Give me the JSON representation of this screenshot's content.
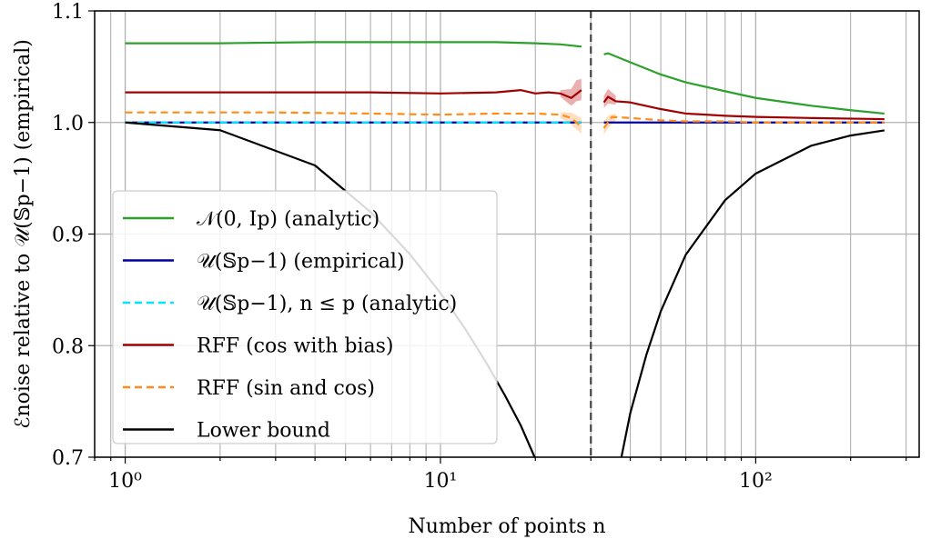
{
  "chart_data": {
    "type": "line",
    "xscale": "log",
    "xlim": [
      0.8,
      330
    ],
    "ylim": [
      0.7,
      1.1
    ],
    "grid": true,
    "xlabel": "Number of points n",
    "ylabel": "ℰnoise relative to 𝒰(𝕊p−1) (empirical)",
    "x_ticks": [
      {
        "value": 1,
        "label": "10⁰"
      },
      {
        "value": 10,
        "label": "10¹"
      },
      {
        "value": 100,
        "label": "10²"
      }
    ],
    "y_ticks": [
      {
        "value": 0.7,
        "label": "0.7"
      },
      {
        "value": 0.8,
        "label": "0.8"
      },
      {
        "value": 0.9,
        "label": "0.9"
      },
      {
        "value": 1.0,
        "label": "1.0"
      },
      {
        "value": 1.1,
        "label": "1.1"
      }
    ],
    "vline": {
      "x": 30,
      "style": "dashed",
      "color": "#444444"
    },
    "legend_position": "lower-left",
    "series": [
      {
        "name": "𝒩(0, Ip) (analytic)",
        "color": "#2ca02c",
        "style": "solid",
        "segments": [
          [
            [
              1,
              1.071
            ],
            [
              2,
              1.071
            ],
            [
              4,
              1.072
            ],
            [
              8,
              1.072
            ],
            [
              15,
              1.072
            ],
            [
              20,
              1.071
            ],
            [
              24,
              1.07
            ],
            [
              26,
              1.069
            ],
            [
              28,
              1.068
            ]
          ],
          [
            [
              33,
              1.061
            ],
            [
              34,
              1.062
            ],
            [
              40,
              1.054
            ],
            [
              50,
              1.043
            ],
            [
              60,
              1.036
            ],
            [
              80,
              1.028
            ],
            [
              100,
              1.022
            ],
            [
              150,
              1.015
            ],
            [
              200,
              1.011
            ],
            [
              256,
              1.008
            ]
          ]
        ]
      },
      {
        "name": "𝒰(𝕊p−1) (empirical)",
        "color": "#0000a0",
        "style": "solid",
        "segments": [
          [
            [
              1,
              1.0
            ],
            [
              28,
              1.0
            ]
          ],
          [
            [
              33,
              1.0
            ],
            [
              256,
              1.0
            ]
          ]
        ]
      },
      {
        "name": "𝒰(𝕊p−1), n ≤ p (analytic)",
        "color": "#00e5ff",
        "style": "dashed",
        "segments": [
          [
            [
              1,
              1.0
            ],
            [
              28,
              1.0
            ]
          ]
        ]
      },
      {
        "name": "RFF (cos with bias)",
        "color": "#a00000",
        "style": "solid",
        "segments": [
          [
            [
              1,
              1.027
            ],
            [
              3,
              1.027
            ],
            [
              6,
              1.027
            ],
            [
              10,
              1.026
            ],
            [
              15,
              1.027
            ],
            [
              18,
              1.029
            ],
            [
              20,
              1.026
            ],
            [
              22,
              1.027
            ],
            [
              24,
              1.026
            ],
            [
              26,
              1.022
            ],
            [
              28,
              1.029
            ]
          ],
          [
            [
              33,
              1.018
            ],
            [
              34,
              1.023
            ],
            [
              36,
              1.019
            ],
            [
              40,
              1.018
            ],
            [
              50,
              1.012
            ],
            [
              60,
              1.008
            ],
            [
              80,
              1.006
            ],
            [
              100,
              1.005
            ],
            [
              150,
              1.004
            ],
            [
              256,
              1.003
            ]
          ]
        ]
      },
      {
        "name": "RFF (sin and cos)",
        "color": "#ff8c1a",
        "style": "dashed",
        "segments": [
          [
            [
              1,
              1.009
            ],
            [
              3,
              1.009
            ],
            [
              6,
              1.008
            ],
            [
              10,
              1.007
            ],
            [
              15,
              1.008
            ],
            [
              20,
              1.008
            ],
            [
              24,
              1.007
            ],
            [
              26,
              1.004
            ],
            [
              28,
              0.996
            ]
          ],
          [
            [
              33,
              0.995
            ],
            [
              35,
              1.005
            ],
            [
              40,
              1.004
            ],
            [
              50,
              1.002
            ],
            [
              60,
              1.001
            ],
            [
              80,
              1.001
            ],
            [
              100,
              1.0
            ],
            [
              256,
              1.0
            ]
          ]
        ]
      },
      {
        "name": "Lower bound",
        "color": "#000000",
        "style": "solid",
        "segments": [
          [
            [
              1,
              1.0
            ],
            [
              2,
              0.9931
            ],
            [
              4,
              0.9615
            ],
            [
              6,
              0.9198
            ],
            [
              8,
              0.8819
            ],
            [
              10,
              0.8471
            ],
            [
              12,
              0.8147
            ],
            [
              14,
              0.7843
            ],
            [
              16,
              0.7556
            ],
            [
              18,
              0.7282
            ],
            [
              19.9,
              0.7
            ]
          ],
          [
            [
              37.5,
              0.7
            ],
            [
              40,
              0.7394
            ],
            [
              45,
              0.7918
            ],
            [
              50,
              0.8308
            ],
            [
              60,
              0.8815
            ],
            [
              80,
              0.9304
            ],
            [
              100,
              0.9542
            ],
            [
              150,
              0.9792
            ],
            [
              200,
              0.9883
            ],
            [
              256,
              0.9929
            ]
          ]
        ]
      }
    ],
    "bands": [
      {
        "series": "RFF (cos with bias)",
        "color": "#d97070",
        "points": [
          [
            24,
            1.029,
            1.023
          ],
          [
            26,
            1.03,
            1.015
          ],
          [
            27,
            1.038,
            1.019
          ],
          [
            28,
            1.039,
            1.02
          ]
        ]
      },
      {
        "series": "RFF (cos with bias)",
        "color": "#d97070",
        "points": [
          [
            33,
            1.024,
            1.013
          ],
          [
            34,
            1.03,
            1.017
          ],
          [
            36,
            1.024,
            1.016
          ]
        ]
      },
      {
        "series": "RFF (sin and cos)",
        "color": "#ffc48a",
        "points": [
          [
            24,
            1.009,
            1.004
          ],
          [
            26,
            1.009,
            0.998
          ],
          [
            28,
            1.004,
            0.99
          ]
        ]
      },
      {
        "series": "RFF (sin and cos)",
        "color": "#ffc48a",
        "points": [
          [
            33,
            1.001,
            0.989
          ],
          [
            34,
            1.006,
            0.995
          ],
          [
            36,
            1.008,
            1.002
          ]
        ]
      }
    ]
  }
}
